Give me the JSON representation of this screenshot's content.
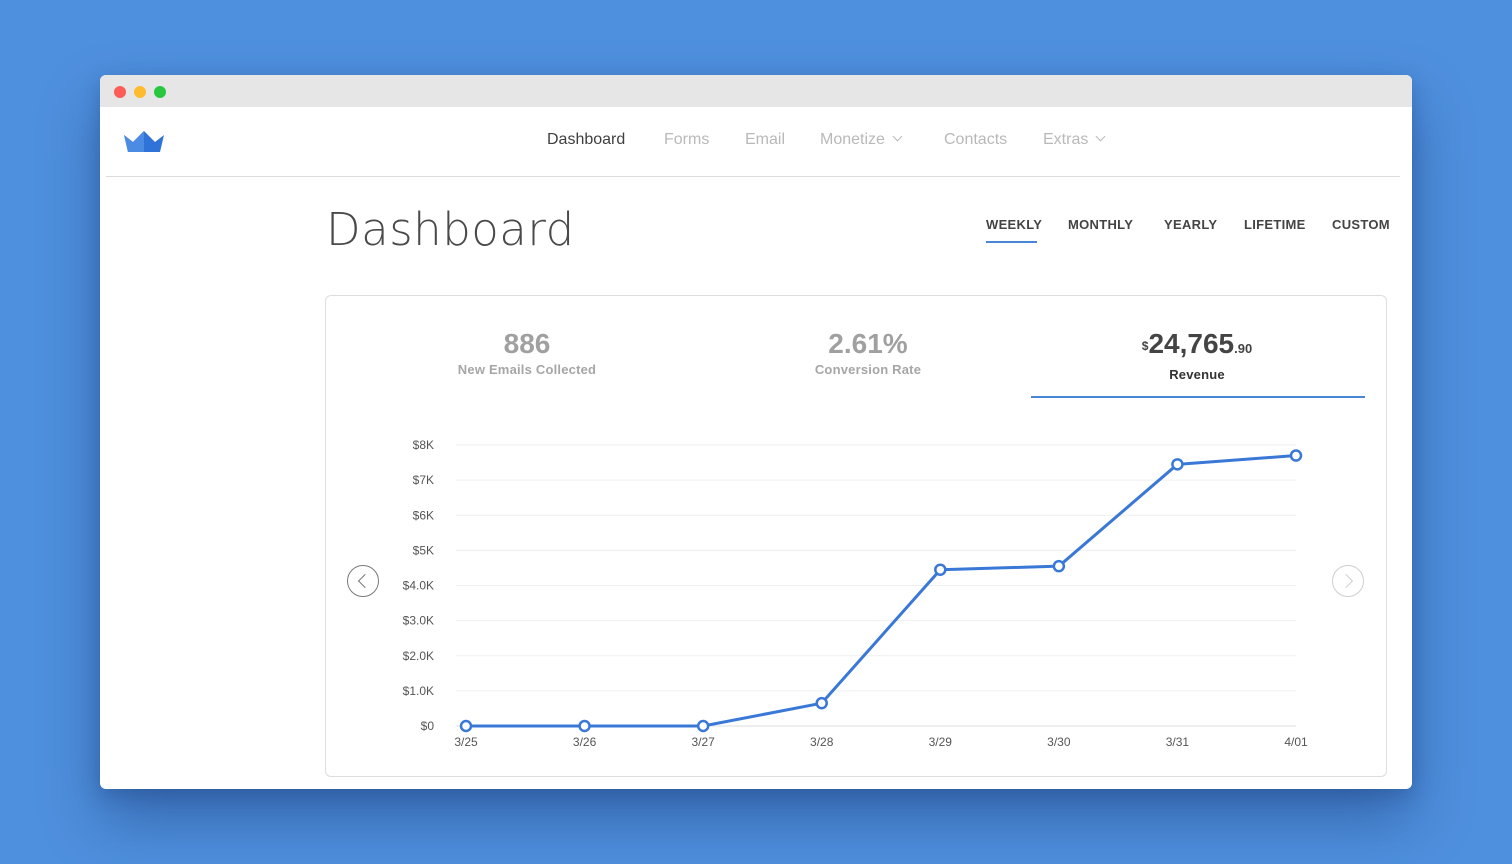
{
  "nav": {
    "items": [
      {
        "label": "Dashboard",
        "active": true
      },
      {
        "label": "Forms"
      },
      {
        "label": "Email"
      },
      {
        "label": "Monetize",
        "dropdown": true
      },
      {
        "label": "Contacts"
      },
      {
        "label": "Extras",
        "dropdown": true
      }
    ],
    "logo_icon": "crown-icon"
  },
  "page": {
    "title": "Dashboard"
  },
  "periods": {
    "items": [
      "WEEKLY",
      "MONTHLY",
      "YEARLY",
      "LIFETIME",
      "CUSTOM"
    ],
    "selected": "WEEKLY"
  },
  "stats": {
    "emails": {
      "value": "886",
      "label": "New Emails Collected"
    },
    "conversion": {
      "value": "2.61%",
      "label": "Conversion Rate"
    },
    "revenue": {
      "currency": "$",
      "value": "24,765",
      "cents": ".90",
      "label": "Revenue",
      "active": true
    }
  },
  "colors": {
    "accent": "#4a86d8",
    "line": "#3a78d8",
    "background": "#4f90de"
  },
  "chart_data": {
    "type": "line",
    "x": [
      "3/25",
      "3/26",
      "3/27",
      "3/28",
      "3/29",
      "3/30",
      "3/31",
      "4/01"
    ],
    "series": [
      {
        "values": [
          0,
          0,
          0,
          650,
          4450,
          4550,
          7450,
          7700
        ]
      }
    ],
    "ytick_labels": [
      "$0",
      "$1.0K",
      "$2.0K",
      "$3.0K",
      "$4.0K",
      "$5K",
      "$6K",
      "$7K",
      "$8K"
    ],
    "ylim": [
      0,
      8000
    ],
    "grid": true
  }
}
